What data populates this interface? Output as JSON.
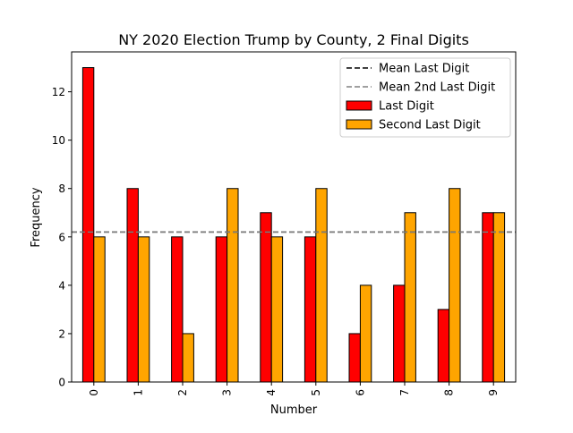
{
  "chart_data": {
    "type": "bar",
    "title": "NY 2020 Election Trump by County, 2 Final Digits",
    "xlabel": "Number",
    "ylabel": "Frequency",
    "categories": [
      "0",
      "1",
      "2",
      "3",
      "4",
      "5",
      "6",
      "7",
      "8",
      "9"
    ],
    "series": [
      {
        "name": "Last Digit",
        "color": "#ff0000",
        "values": [
          13,
          8,
          6,
          6,
          7,
          6,
          2,
          4,
          3,
          7
        ]
      },
      {
        "name": "Second Last Digit",
        "color": "#ffa500",
        "values": [
          6,
          6,
          2,
          8,
          6,
          8,
          4,
          7,
          8,
          7
        ]
      }
    ],
    "reference_lines": [
      {
        "name": "Mean Last Digit",
        "value": 6.2,
        "color": "#000000",
        "style": "dashed"
      },
      {
        "name": "Mean 2nd Last Digit",
        "value": 6.2,
        "color": "#808080",
        "style": "dashed"
      }
    ],
    "ylim": [
      0,
      13.65
    ],
    "yticks": [
      "0",
      "2",
      "4",
      "6",
      "8",
      "10",
      "12"
    ],
    "grid": false,
    "legend_position": "top-right",
    "xtick_rotation": "vertical"
  }
}
